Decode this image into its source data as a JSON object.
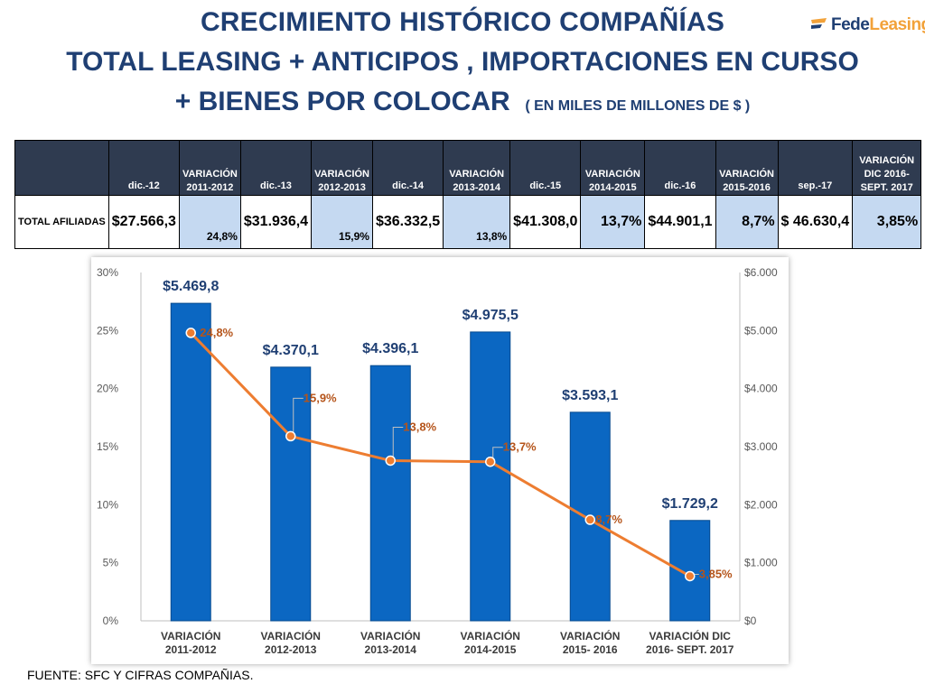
{
  "header": {
    "title_line1": "CRECIMIENTO HISTÓRICO COMPAÑÍAS",
    "title_line2": "TOTAL LEASING + ANTICIPOS , IMPORTACIONES EN CURSO",
    "title_line3": "+ BIENES POR COLOCAR",
    "title_sub": "( EN MILES DE  MILLONES DE $ )"
  },
  "logo": {
    "part1": "Fede",
    "part2": "Leasing",
    "colors": {
      "text": "#1f3f73",
      "accent": "#f2a23a",
      "icon": "#f2a23a"
    }
  },
  "table": {
    "headers": [
      {
        "l1": "",
        "l2": ""
      },
      {
        "l1": "",
        "l2": "dic.-12"
      },
      {
        "l1": "VARIACIÓN",
        "l2": "2011-2012"
      },
      {
        "l1": "",
        "l2": "dic.-13"
      },
      {
        "l1": "VARIACIÓN",
        "l2": "2012-2013"
      },
      {
        "l1": "",
        "l2": "dic.-14"
      },
      {
        "l1": "VARIACIÓN",
        "l2": "2013-2014"
      },
      {
        "l1": "",
        "l2": "dic.-15"
      },
      {
        "l1": "VARIACIÓN",
        "l2": "2014-2015"
      },
      {
        "l1": "",
        "l2": "dic.-16"
      },
      {
        "l1": "VARIACIÓN",
        "l2": "2015-2016"
      },
      {
        "l1": "",
        "l2": "sep.-17"
      },
      {
        "l1": "VARIACIÓN",
        "l2": "DIC 2016-",
        "l3": "SEPT. 2017"
      }
    ],
    "row": {
      "label": "TOTAL AFILIADAS",
      "cells": [
        "$27.566,3",
        "24,8%",
        "$31.936,4",
        "15,9%",
        "$36.332,5",
        "13,8%",
        "$41.308,0",
        "13,7%",
        "$44.901,1",
        "8,7%",
        "$ 46.630,4",
        "3,85%"
      ]
    }
  },
  "chart_data": {
    "type": "bar",
    "categories": [
      [
        "VARIACIÓN",
        "2011-2012"
      ],
      [
        "VARIACIÓN",
        "2012-2013"
      ],
      [
        "VARIACIÓN",
        "2013-2014"
      ],
      [
        "VARIACIÓN",
        "2014-2015"
      ],
      [
        "VARIACIÓN",
        "2015- 2016"
      ],
      [
        "VARIACIÓN DIC",
        "2016- SEPT. 2017"
      ]
    ],
    "series": [
      {
        "type": "bar",
        "axis": "right",
        "color": "#0b67c2",
        "values": [
          5469.8,
          4370.1,
          4396.1,
          4975.5,
          3593.1,
          1729.2
        ],
        "labels": [
          "$5.469,8",
          "$4.370,1",
          "$4.396,1",
          "$4.975,5",
          "$3.593,1",
          "$1.729,2"
        ]
      },
      {
        "type": "line",
        "axis": "left",
        "color": "#ed7d31",
        "values": [
          24.8,
          15.9,
          13.8,
          13.7,
          8.7,
          3.85
        ],
        "labels": [
          "24,8%",
          "15,9%",
          "13,8%",
          "13,7%",
          "8,7%",
          "3,85%"
        ]
      }
    ],
    "left_axis": {
      "ylim": [
        0,
        30
      ],
      "ticks": [
        "0%",
        "5%",
        "10%",
        "15%",
        "20%",
        "25%",
        "30%"
      ]
    },
    "right_axis": {
      "ylim": [
        0,
        6000
      ],
      "ticks": [
        "$0",
        "$1.000",
        "$2.000",
        "$3.000",
        "$4.000",
        "$5.000",
        "$6.000"
      ]
    },
    "grid": false,
    "colors": {
      "label": "#1f3f73",
      "line_label": "#b5541a",
      "axis_text": "#595959"
    }
  },
  "footer": {
    "source": "FUENTE: SFC Y CIFRAS COMPAÑIAS."
  }
}
